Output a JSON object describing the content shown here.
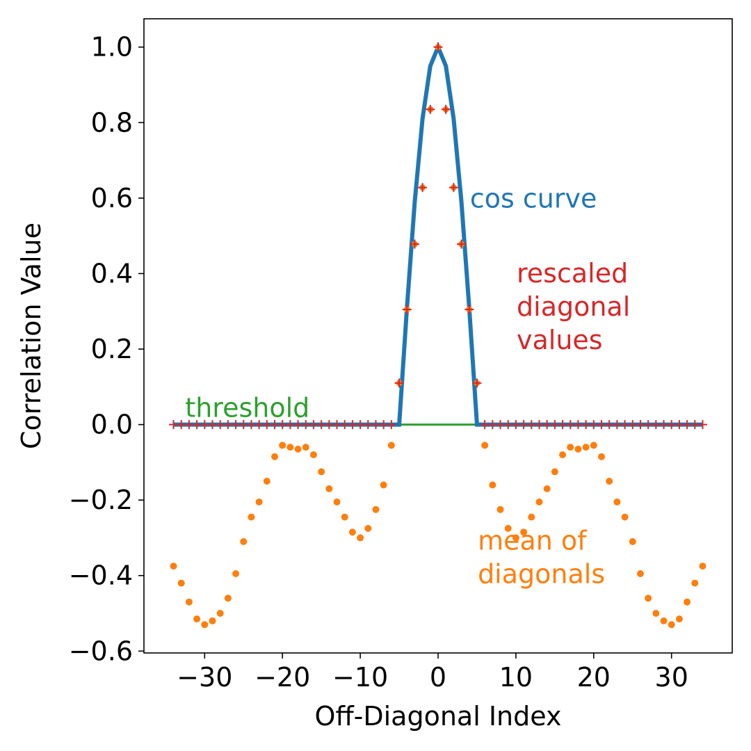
{
  "chart_data": {
    "type": "line",
    "xlabel": "Off-Diagonal Index",
    "ylabel": "Correlation Value",
    "xlim": [
      -37.8,
      37.8
    ],
    "ylim": [
      -0.605,
      1.075
    ],
    "xticks": [
      -30,
      -20,
      -10,
      0,
      10,
      20,
      30
    ],
    "xtick_labels": [
      "−30",
      "−20",
      "−10",
      "0",
      "10",
      "20",
      "30"
    ],
    "yticks": [
      -0.6,
      -0.4,
      -0.2,
      0.0,
      0.2,
      0.4,
      0.6,
      0.8,
      1.0
    ],
    "ytick_labels": [
      "−0.6",
      "−0.4",
      "−0.2",
      "0.0",
      "0.2",
      "0.4",
      "0.6",
      "0.8",
      "1.0"
    ],
    "grid": false,
    "legend": "none",
    "series": [
      {
        "name": "cos curve",
        "kind": "line",
        "color": "#1f77b4",
        "x": [
          -34,
          -33,
          -32,
          -31,
          -30,
          -29,
          -28,
          -27,
          -26,
          -25,
          -24,
          -23,
          -22,
          -21,
          -20,
          -19,
          -18,
          -17,
          -16,
          -15,
          -14,
          -13,
          -12,
          -11,
          -10,
          -9,
          -8,
          -7,
          -6,
          -5,
          -4,
          -3,
          -2,
          -1,
          0,
          1,
          2,
          3,
          4,
          5,
          6,
          7,
          8,
          9,
          10,
          11,
          12,
          13,
          14,
          15,
          16,
          17,
          18,
          19,
          20,
          21,
          22,
          23,
          24,
          25,
          26,
          27,
          28,
          29,
          30,
          31,
          32,
          33,
          34
        ],
        "y": [
          0,
          0,
          0,
          0,
          0,
          0,
          0,
          0,
          0,
          0,
          0,
          0,
          0,
          0,
          0,
          0,
          0,
          0,
          0,
          0,
          0,
          0,
          0,
          0,
          0,
          0,
          0,
          0,
          0,
          0,
          0.31,
          0.59,
          0.81,
          0.95,
          1.0,
          0.95,
          0.81,
          0.59,
          0.31,
          0,
          0,
          0,
          0,
          0,
          0,
          0,
          0,
          0,
          0,
          0,
          0,
          0,
          0,
          0,
          0,
          0,
          0,
          0,
          0,
          0,
          0,
          0,
          0,
          0,
          0,
          0,
          0,
          0,
          0
        ]
      },
      {
        "name": "threshold",
        "kind": "line",
        "color": "#2ca02c",
        "x": [
          -34,
          34
        ],
        "y": [
          0,
          0
        ]
      },
      {
        "name": "mean of diagonals",
        "kind": "scatter",
        "color": "#ff7f0e",
        "x": [
          -34,
          -33,
          -32,
          -31,
          -30,
          -29,
          -28,
          -27,
          -26,
          -25,
          -24,
          -23,
          -22,
          -21,
          -20,
          -19,
          -18,
          -17,
          -16,
          -15,
          -14,
          -13,
          -12,
          -11,
          -10,
          -9,
          -8,
          -7,
          -6,
          6,
          7,
          8,
          9,
          10,
          11,
          12,
          13,
          14,
          15,
          16,
          17,
          18,
          19,
          20,
          21,
          22,
          23,
          24,
          25,
          26,
          27,
          28,
          29,
          30,
          31,
          32,
          33,
          34
        ],
        "y": [
          -0.375,
          -0.42,
          -0.47,
          -0.515,
          -0.53,
          -0.52,
          -0.5,
          -0.46,
          -0.395,
          -0.31,
          -0.245,
          -0.205,
          -0.15,
          -0.085,
          -0.055,
          -0.06,
          -0.065,
          -0.06,
          -0.08,
          -0.125,
          -0.17,
          -0.205,
          -0.245,
          -0.285,
          -0.3,
          -0.275,
          -0.225,
          -0.16,
          -0.055,
          -0.055,
          -0.16,
          -0.225,
          -0.275,
          -0.3,
          -0.285,
          -0.245,
          -0.205,
          -0.17,
          -0.125,
          -0.08,
          -0.06,
          -0.065,
          -0.06,
          -0.055,
          -0.085,
          -0.15,
          -0.205,
          -0.245,
          -0.31,
          -0.395,
          -0.46,
          -0.5,
          -0.52,
          -0.53,
          -0.515,
          -0.47,
          -0.42,
          -0.375
        ]
      },
      {
        "name": "rescaled diagonal values",
        "kind": "scatter-plus",
        "color": "#d62728",
        "inner_color": "#ff7f0e",
        "x": [
          -34,
          -33,
          -32,
          -31,
          -30,
          -29,
          -28,
          -27,
          -26,
          -25,
          -24,
          -23,
          -22,
          -21,
          -20,
          -19,
          -18,
          -17,
          -16,
          -15,
          -14,
          -13,
          -12,
          -11,
          -10,
          -9,
          -8,
          -7,
          -6,
          -5,
          -4,
          -3,
          -2,
          -1,
          0,
          1,
          2,
          3,
          4,
          5,
          6,
          7,
          8,
          9,
          10,
          11,
          12,
          13,
          14,
          15,
          16,
          17,
          18,
          19,
          20,
          21,
          22,
          23,
          24,
          25,
          26,
          27,
          28,
          29,
          30,
          31,
          32,
          33,
          34
        ],
        "y": [
          0,
          0,
          0,
          0,
          0,
          0,
          0,
          0,
          0,
          0,
          0,
          0,
          0,
          0,
          0,
          0,
          0,
          0,
          0,
          0,
          0,
          0,
          0,
          0,
          0,
          0,
          0,
          0,
          0,
          0.11,
          0.305,
          0.478,
          0.628,
          0.835,
          1.0,
          0.835,
          0.628,
          0.478,
          0.305,
          0.11,
          0,
          0,
          0,
          0,
          0,
          0,
          0,
          0,
          0,
          0,
          0,
          0,
          0,
          0,
          0,
          0,
          0,
          0,
          0,
          0,
          0,
          0,
          0,
          0,
          0,
          0,
          0,
          0,
          0
        ]
      }
    ],
    "annotations": [
      {
        "text": [
          "cos curve"
        ],
        "x": 4.1,
        "y": 0.575,
        "color": "#1f77b4"
      },
      {
        "text": [
          "threshold"
        ],
        "x": -32.5,
        "y": 0.02,
        "color": "#2ca02c"
      },
      {
        "text": [
          "rescaled",
          "diagonal",
          "values"
        ],
        "x": 10.1,
        "y": 0.2,
        "color": "#d62728"
      },
      {
        "text": [
          "mean of",
          "diagonals"
        ],
        "x": 5.1,
        "y": -0.42,
        "color": "#ff7f0e"
      }
    ]
  }
}
